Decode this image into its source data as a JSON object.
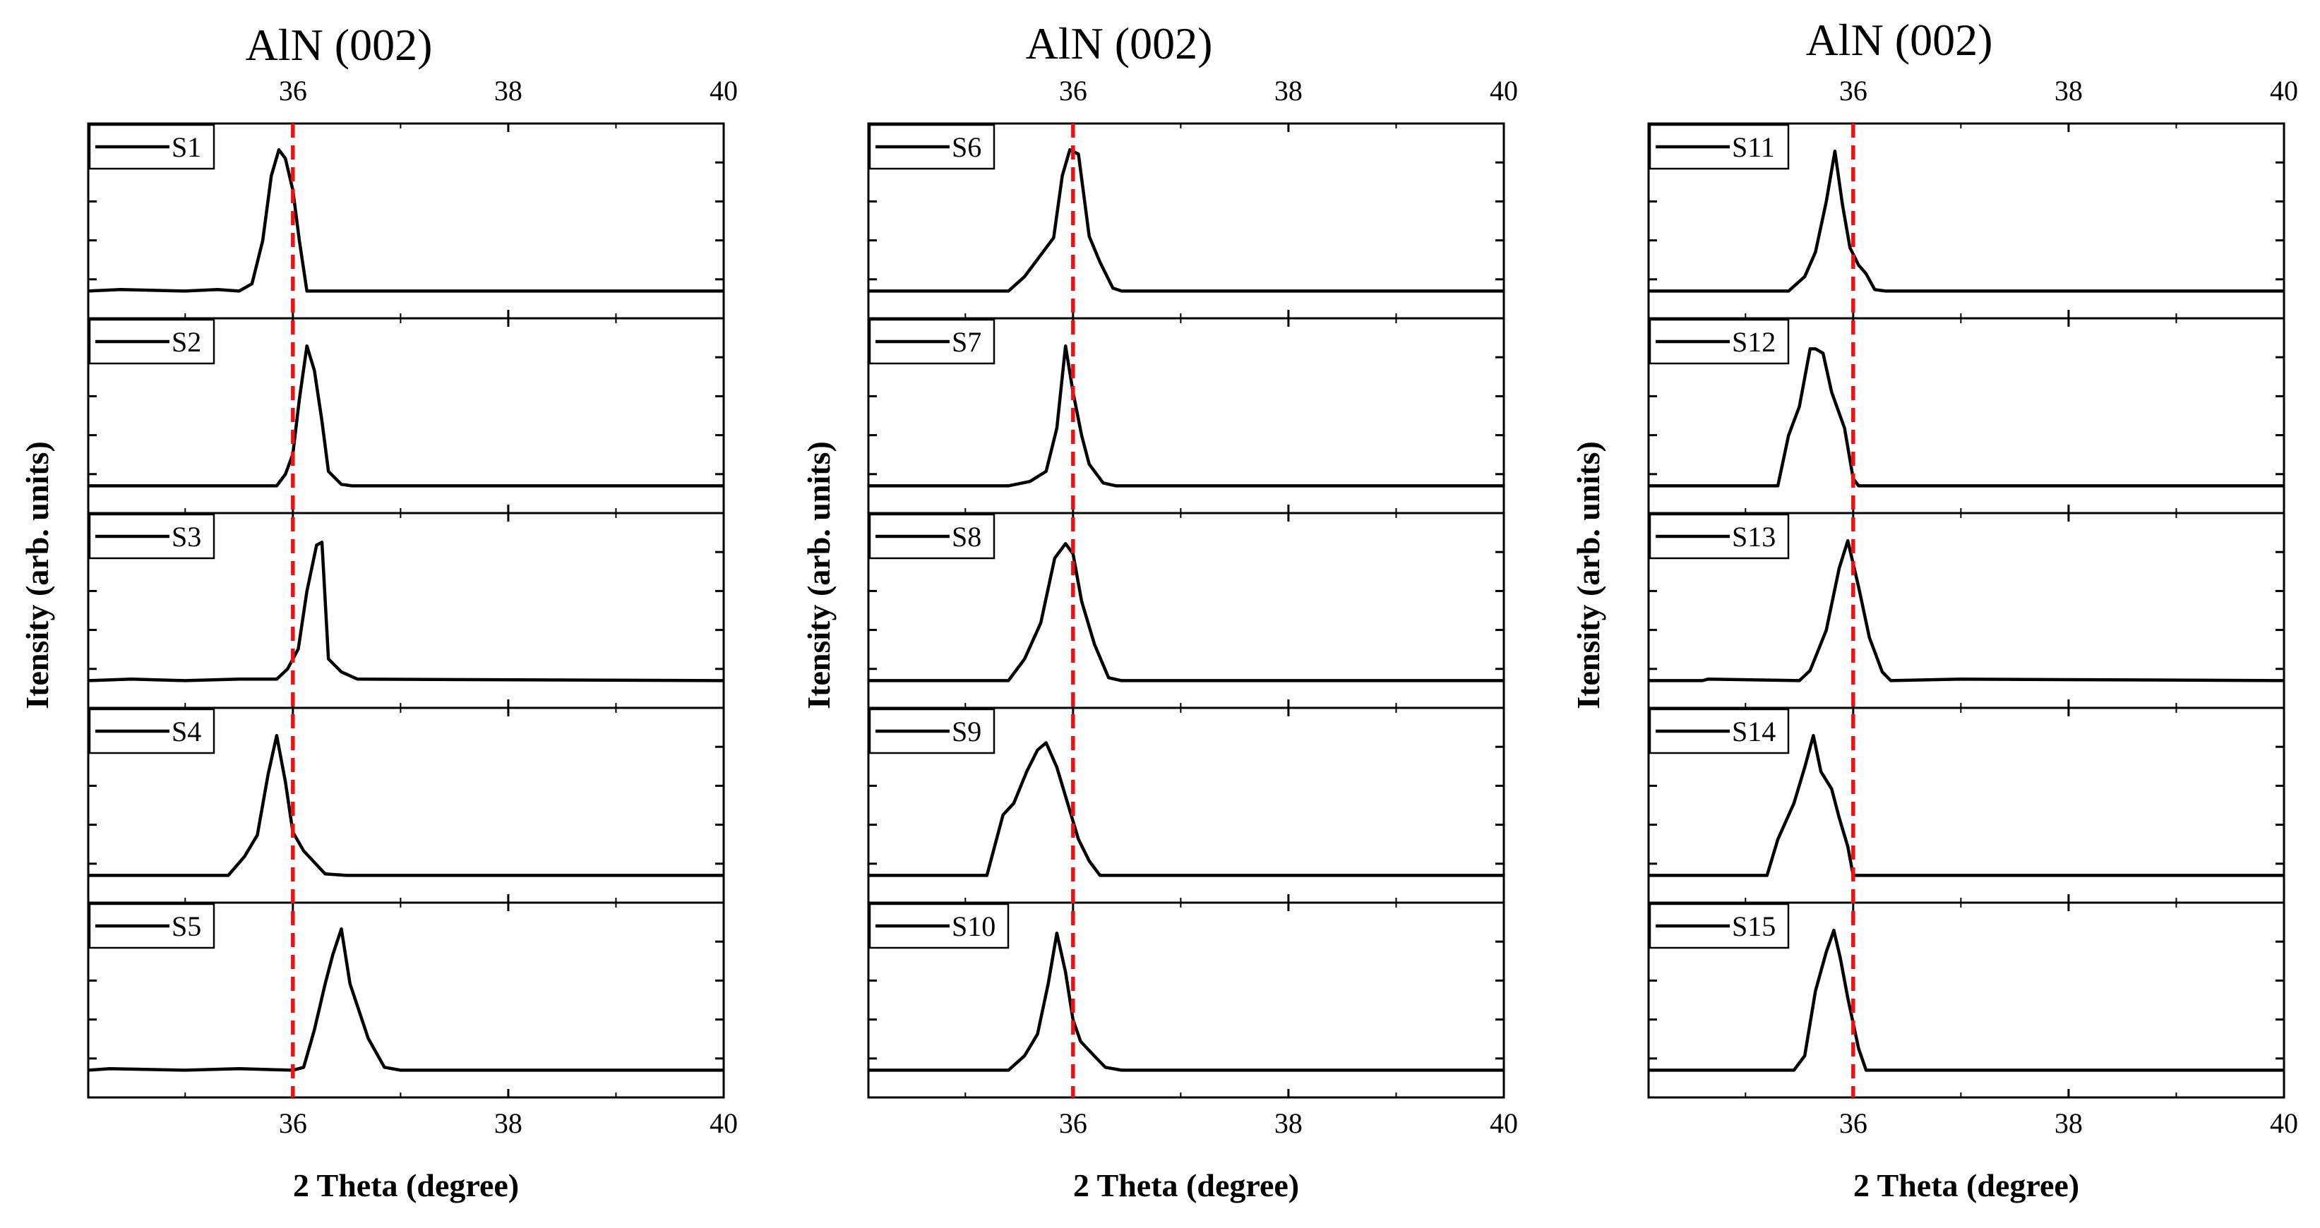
{
  "figure": {
    "x_axis_label": "2 Theta (degree)",
    "y_axis_label": "Itensity (arb. units)",
    "reference_line": {
      "value": 36.0,
      "color": "#ee1111",
      "style": "dashed"
    },
    "trace_color": "#000000"
  },
  "chart_data": [
    {
      "type": "line",
      "title": "AlN (002)",
      "xlabel": "2 Theta (degree)",
      "ylabel": "Itensity (arb. units)",
      "xlim": [
        34.1,
        40.0
      ],
      "x_ticks": [
        36,
        38,
        40
      ],
      "legend_position": "top-left",
      "series": [
        {
          "name": "S1",
          "points": [
            [
              34.1,
              0.0
            ],
            [
              34.4,
              0.01
            ],
            [
              35.0,
              0.0
            ],
            [
              35.3,
              0.01
            ],
            [
              35.5,
              0.0
            ],
            [
              35.62,
              0.05
            ],
            [
              35.72,
              0.35
            ],
            [
              35.8,
              0.8
            ],
            [
              35.87,
              0.98
            ],
            [
              35.93,
              0.92
            ],
            [
              36.0,
              0.7
            ],
            [
              36.06,
              0.35
            ],
            [
              36.13,
              0.0
            ],
            [
              40.0,
              0.0
            ]
          ]
        },
        {
          "name": "S2",
          "points": [
            [
              34.1,
              0.0
            ],
            [
              35.85,
              0.0
            ],
            [
              35.93,
              0.08
            ],
            [
              36.0,
              0.22
            ],
            [
              36.06,
              0.6
            ],
            [
              36.13,
              0.97
            ],
            [
              36.2,
              0.8
            ],
            [
              36.27,
              0.45
            ],
            [
              36.33,
              0.1
            ],
            [
              36.45,
              0.01
            ],
            [
              36.55,
              0.0
            ],
            [
              40.0,
              0.0
            ]
          ]
        },
        {
          "name": "S3",
          "points": [
            [
              34.1,
              0.0
            ],
            [
              34.5,
              0.01
            ],
            [
              35.0,
              0.0
            ],
            [
              35.5,
              0.01
            ],
            [
              35.85,
              0.01
            ],
            [
              35.95,
              0.08
            ],
            [
              36.05,
              0.22
            ],
            [
              36.13,
              0.62
            ],
            [
              36.22,
              0.94
            ],
            [
              36.27,
              0.96
            ],
            [
              36.33,
              0.15
            ],
            [
              36.45,
              0.06
            ],
            [
              36.6,
              0.01
            ],
            [
              40.0,
              0.0
            ]
          ]
        },
        {
          "name": "S4",
          "points": [
            [
              34.1,
              0.0
            ],
            [
              35.4,
              0.0
            ],
            [
              35.55,
              0.13
            ],
            [
              35.67,
              0.28
            ],
            [
              35.77,
              0.7
            ],
            [
              35.85,
              0.97
            ],
            [
              35.93,
              0.65
            ],
            [
              36.0,
              0.3
            ],
            [
              36.1,
              0.17
            ],
            [
              36.3,
              0.01
            ],
            [
              36.5,
              0.0
            ],
            [
              40.0,
              0.0
            ]
          ]
        },
        {
          "name": "S5",
          "points": [
            [
              34.1,
              0.0
            ],
            [
              34.3,
              0.01
            ],
            [
              35.0,
              0.0
            ],
            [
              35.5,
              0.01
            ],
            [
              36.0,
              0.0
            ],
            [
              36.1,
              0.02
            ],
            [
              36.2,
              0.28
            ],
            [
              36.3,
              0.6
            ],
            [
              36.37,
              0.8
            ],
            [
              36.45,
              0.98
            ],
            [
              36.53,
              0.6
            ],
            [
              36.7,
              0.22
            ],
            [
              36.85,
              0.02
            ],
            [
              37.0,
              0.0
            ],
            [
              40.0,
              0.0
            ]
          ]
        }
      ]
    },
    {
      "type": "line",
      "title": "AlN (002)",
      "xlabel": "2 Theta (degree)",
      "ylabel": "Itensity (arb. units)",
      "xlim": [
        34.1,
        40.0
      ],
      "x_ticks": [
        36,
        38,
        40
      ],
      "legend_position": "top-left",
      "series": [
        {
          "name": "S6",
          "points": [
            [
              34.1,
              0.0
            ],
            [
              35.4,
              0.0
            ],
            [
              35.55,
              0.1
            ],
            [
              35.7,
              0.25
            ],
            [
              35.82,
              0.37
            ],
            [
              35.9,
              0.8
            ],
            [
              35.97,
              0.98
            ],
            [
              36.05,
              0.95
            ],
            [
              36.15,
              0.38
            ],
            [
              36.25,
              0.2
            ],
            [
              36.37,
              0.02
            ],
            [
              36.45,
              0.0
            ],
            [
              40.0,
              0.0
            ]
          ]
        },
        {
          "name": "S7",
          "points": [
            [
              34.1,
              0.0
            ],
            [
              35.4,
              0.0
            ],
            [
              35.6,
              0.03
            ],
            [
              35.75,
              0.1
            ],
            [
              35.85,
              0.4
            ],
            [
              35.93,
              0.97
            ],
            [
              36.0,
              0.65
            ],
            [
              36.08,
              0.35
            ],
            [
              36.15,
              0.15
            ],
            [
              36.28,
              0.02
            ],
            [
              36.4,
              0.0
            ],
            [
              40.0,
              0.0
            ]
          ]
        },
        {
          "name": "S8",
          "points": [
            [
              34.1,
              0.0
            ],
            [
              35.4,
              0.0
            ],
            [
              35.55,
              0.15
            ],
            [
              35.7,
              0.4
            ],
            [
              35.83,
              0.85
            ],
            [
              35.93,
              0.95
            ],
            [
              36.0,
              0.88
            ],
            [
              36.08,
              0.55
            ],
            [
              36.2,
              0.25
            ],
            [
              36.33,
              0.02
            ],
            [
              36.45,
              0.0
            ],
            [
              40.0,
              0.0
            ]
          ]
        },
        {
          "name": "S9",
          "points": [
            [
              34.1,
              0.0
            ],
            [
              35.2,
              0.0
            ],
            [
              35.35,
              0.42
            ],
            [
              35.45,
              0.5
            ],
            [
              35.57,
              0.72
            ],
            [
              35.67,
              0.87
            ],
            [
              35.75,
              0.92
            ],
            [
              35.85,
              0.75
            ],
            [
              35.95,
              0.5
            ],
            [
              36.05,
              0.25
            ],
            [
              36.15,
              0.1
            ],
            [
              36.25,
              0.0
            ],
            [
              40.0,
              0.0
            ]
          ]
        },
        {
          "name": "S10",
          "points": [
            [
              34.1,
              0.0
            ],
            [
              35.4,
              0.0
            ],
            [
              35.55,
              0.1
            ],
            [
              35.67,
              0.25
            ],
            [
              35.77,
              0.6
            ],
            [
              35.85,
              0.95
            ],
            [
              35.93,
              0.68
            ],
            [
              36.0,
              0.35
            ],
            [
              36.07,
              0.2
            ],
            [
              36.17,
              0.12
            ],
            [
              36.3,
              0.02
            ],
            [
              36.45,
              0.0
            ],
            [
              40.0,
              0.0
            ]
          ]
        }
      ]
    },
    {
      "type": "line",
      "title": "AlN (002)",
      "xlabel": "2 Theta (degree)",
      "ylabel": "Itensity (arb. units)",
      "xlim": [
        34.1,
        40.0
      ],
      "x_ticks": [
        36,
        38,
        40
      ],
      "legend_position": "top-left",
      "series": [
        {
          "name": "S11",
          "points": [
            [
              34.1,
              0.0
            ],
            [
              35.4,
              0.0
            ],
            [
              35.55,
              0.1
            ],
            [
              35.65,
              0.27
            ],
            [
              35.75,
              0.62
            ],
            [
              35.83,
              0.97
            ],
            [
              35.9,
              0.6
            ],
            [
              35.97,
              0.3
            ],
            [
              36.05,
              0.18
            ],
            [
              36.12,
              0.12
            ],
            [
              36.2,
              0.01
            ],
            [
              36.3,
              0.0
            ],
            [
              40.0,
              0.0
            ]
          ]
        },
        {
          "name": "S12",
          "points": [
            [
              34.1,
              0.0
            ],
            [
              35.3,
              0.0
            ],
            [
              35.4,
              0.35
            ],
            [
              35.5,
              0.55
            ],
            [
              35.6,
              0.95
            ],
            [
              35.65,
              0.95
            ],
            [
              35.72,
              0.92
            ],
            [
              35.8,
              0.65
            ],
            [
              35.92,
              0.4
            ],
            [
              36.0,
              0.05
            ],
            [
              36.05,
              0.0
            ],
            [
              40.0,
              0.0
            ]
          ]
        },
        {
          "name": "S13",
          "points": [
            [
              34.1,
              0.0
            ],
            [
              34.6,
              0.0
            ],
            [
              34.65,
              0.01
            ],
            [
              35.5,
              0.0
            ],
            [
              35.6,
              0.07
            ],
            [
              35.75,
              0.35
            ],
            [
              35.87,
              0.78
            ],
            [
              35.95,
              0.97
            ],
            [
              36.05,
              0.65
            ],
            [
              36.15,
              0.3
            ],
            [
              36.27,
              0.06
            ],
            [
              36.35,
              0.0
            ],
            [
              37.0,
              0.01
            ],
            [
              40.0,
              0.0
            ]
          ]
        },
        {
          "name": "S14",
          "points": [
            [
              34.1,
              0.0
            ],
            [
              35.2,
              0.0
            ],
            [
              35.3,
              0.25
            ],
            [
              35.45,
              0.5
            ],
            [
              35.55,
              0.75
            ],
            [
              35.63,
              0.97
            ],
            [
              35.7,
              0.72
            ],
            [
              35.8,
              0.6
            ],
            [
              35.87,
              0.4
            ],
            [
              35.95,
              0.2
            ],
            [
              36.0,
              0.0
            ],
            [
              40.0,
              0.0
            ]
          ]
        },
        {
          "name": "S15",
          "points": [
            [
              34.1,
              0.0
            ],
            [
              35.45,
              0.0
            ],
            [
              35.55,
              0.1
            ],
            [
              35.65,
              0.55
            ],
            [
              35.75,
              0.82
            ],
            [
              35.82,
              0.97
            ],
            [
              35.88,
              0.78
            ],
            [
              35.95,
              0.5
            ],
            [
              36.05,
              0.15
            ],
            [
              36.12,
              0.0
            ],
            [
              40.0,
              0.0
            ]
          ]
        }
      ]
    }
  ]
}
